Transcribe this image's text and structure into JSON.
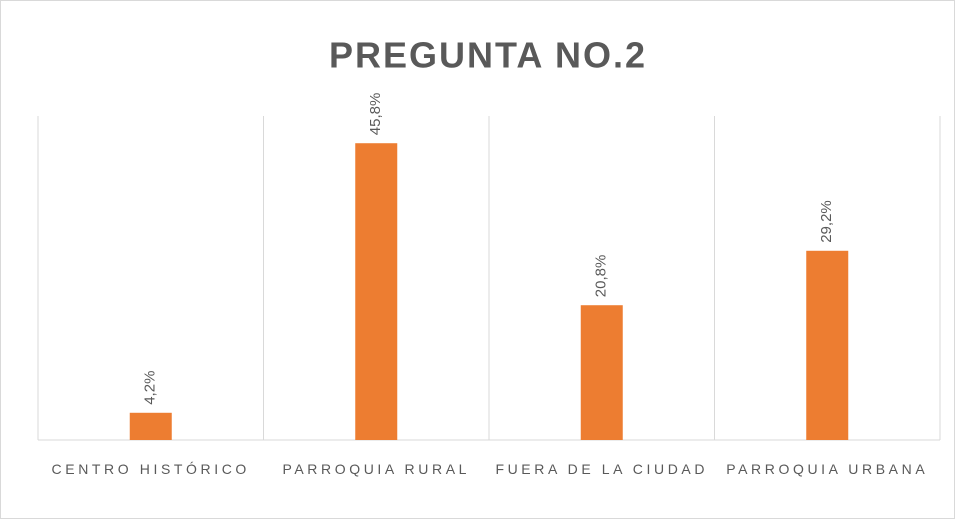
{
  "chart_data": {
    "type": "bar",
    "title": "PREGUNTA NO.2",
    "categories": [
      "CENTRO HISTÓRICO",
      "PARROQUIA RURAL",
      "FUERA DE LA CIUDAD",
      "PARROQUIA URBANA"
    ],
    "values": [
      4.2,
      45.8,
      20.8,
      29.2
    ],
    "value_labels": [
      "4,2%",
      "45,8%",
      "20,8%",
      "29,2%"
    ],
    "color": "#ed7d31",
    "ylim": [
      0,
      50
    ]
  }
}
